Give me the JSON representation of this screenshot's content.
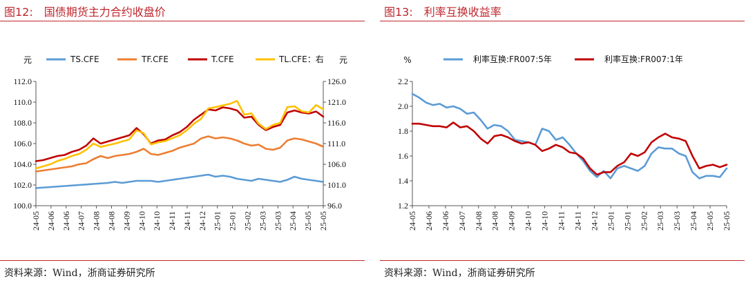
{
  "chart_data": [
    {
      "type": "line",
      "figure_label": "图12:",
      "title": "国债期货主力合约收盘价",
      "left_unit": "元",
      "right_unit": "元",
      "ylim": [
        100.0,
        112.0
      ],
      "y_ticks": [
        "100.0",
        "102.0",
        "104.0",
        "106.0",
        "108.0",
        "110.0",
        "112.0"
      ],
      "y2lim": [
        96.0,
        126.0
      ],
      "y2_ticks": [
        "96.0",
        "101.0",
        "106.0",
        "111.0",
        "116.0",
        "121.0",
        "126.0"
      ],
      "x_ticks": [
        "24-05",
        "24-06",
        "24-06",
        "24-07",
        "24-08",
        "24-08",
        "24-09",
        "24-10",
        "24-10",
        "24-11",
        "24-11",
        "24-12",
        "25-01",
        "25-01",
        "25-02",
        "25-03",
        "25-03",
        "25-04",
        "25-05",
        "25-05"
      ],
      "legend_position": "top",
      "series": [
        {
          "name": "TS.CFE",
          "axis": "left",
          "color": "#5b9bd5",
          "values": [
            [
              0,
              101.7
            ],
            [
              2,
              101.8
            ],
            [
              4,
              101.9
            ],
            [
              6,
              102.0
            ],
            [
              8,
              102.1
            ],
            [
              10,
              102.2
            ],
            [
              11,
              102.3
            ],
            [
              12,
              102.2
            ],
            [
              13,
              102.3
            ],
            [
              14,
              102.4
            ],
            [
              15,
              102.4
            ],
            [
              16,
              102.4
            ],
            [
              17,
              102.3
            ],
            [
              18,
              102.4
            ],
            [
              19,
              102.5
            ],
            [
              20,
              102.6
            ],
            [
              21,
              102.7
            ],
            [
              22,
              102.8
            ],
            [
              23,
              102.9
            ],
            [
              24,
              103.0
            ],
            [
              25,
              102.8
            ],
            [
              26,
              102.9
            ],
            [
              27,
              102.8
            ],
            [
              28,
              102.6
            ],
            [
              29,
              102.5
            ],
            [
              30,
              102.4
            ],
            [
              31,
              102.6
            ],
            [
              32,
              102.5
            ],
            [
              33,
              102.4
            ],
            [
              34,
              102.3
            ],
            [
              35,
              102.5
            ],
            [
              36,
              102.8
            ],
            [
              37,
              102.6
            ],
            [
              38,
              102.5
            ],
            [
              39,
              102.4
            ],
            [
              40,
              102.3
            ]
          ]
        },
        {
          "name": "TF.CFE",
          "axis": "left",
          "color": "#ed7d31",
          "values": [
            [
              0,
              103.3
            ],
            [
              1,
              103.4
            ],
            [
              2,
              103.5
            ],
            [
              3,
              103.6
            ],
            [
              4,
              103.7
            ],
            [
              5,
              103.8
            ],
            [
              6,
              104.0
            ],
            [
              7,
              104.1
            ],
            [
              8,
              104.5
            ],
            [
              9,
              104.8
            ],
            [
              10,
              104.6
            ],
            [
              11,
              104.8
            ],
            [
              12,
              104.9
            ],
            [
              13,
              105.0
            ],
            [
              14,
              105.2
            ],
            [
              15,
              105.5
            ],
            [
              16,
              105.0
            ],
            [
              17,
              104.9
            ],
            [
              18,
              105.1
            ],
            [
              19,
              105.3
            ],
            [
              20,
              105.6
            ],
            [
              21,
              105.8
            ],
            [
              22,
              106.0
            ],
            [
              23,
              106.5
            ],
            [
              24,
              106.7
            ],
            [
              25,
              106.5
            ],
            [
              26,
              106.6
            ],
            [
              27,
              106.5
            ],
            [
              28,
              106.3
            ],
            [
              29,
              106.0
            ],
            [
              30,
              105.8
            ],
            [
              31,
              105.9
            ],
            [
              32,
              105.5
            ],
            [
              33,
              105.4
            ],
            [
              34,
              105.6
            ],
            [
              35,
              106.3
            ],
            [
              36,
              106.5
            ],
            [
              37,
              106.4
            ],
            [
              38,
              106.2
            ],
            [
              39,
              106.0
            ],
            [
              40,
              105.7
            ]
          ]
        },
        {
          "name": "T.CFE",
          "axis": "left",
          "color": "#c00000",
          "values": [
            [
              0,
              104.3
            ],
            [
              1,
              104.4
            ],
            [
              2,
              104.6
            ],
            [
              3,
              104.8
            ],
            [
              4,
              104.9
            ],
            [
              5,
              105.2
            ],
            [
              6,
              105.4
            ],
            [
              7,
              105.8
            ],
            [
              8,
              106.5
            ],
            [
              9,
              106.0
            ],
            [
              10,
              106.2
            ],
            [
              11,
              106.4
            ],
            [
              12,
              106.6
            ],
            [
              13,
              106.8
            ],
            [
              14,
              107.5
            ],
            [
              15,
              106.9
            ],
            [
              16,
              106.0
            ],
            [
              17,
              106.3
            ],
            [
              18,
              106.4
            ],
            [
              19,
              106.8
            ],
            [
              20,
              107.1
            ],
            [
              21,
              107.6
            ],
            [
              22,
              108.3
            ],
            [
              23,
              108.8
            ],
            [
              24,
              109.3
            ],
            [
              25,
              109.2
            ],
            [
              26,
              109.5
            ],
            [
              27,
              109.4
            ],
            [
              28,
              109.2
            ],
            [
              29,
              108.5
            ],
            [
              30,
              108.6
            ],
            [
              31,
              107.8
            ],
            [
              32,
              107.3
            ],
            [
              33,
              107.6
            ],
            [
              34,
              107.8
            ],
            [
              35,
              109.0
            ],
            [
              36,
              109.2
            ],
            [
              37,
              109.0
            ],
            [
              38,
              108.9
            ],
            [
              39,
              109.1
            ],
            [
              40,
              108.6
            ]
          ]
        },
        {
          "name": "TL.CFE：右",
          "axis": "right",
          "color": "#ffc000",
          "values": [
            [
              0,
              105.0
            ],
            [
              1,
              105.5
            ],
            [
              2,
              106.0
            ],
            [
              3,
              106.8
            ],
            [
              4,
              107.3
            ],
            [
              5,
              108.0
            ],
            [
              6,
              108.5
            ],
            [
              7,
              109.5
            ],
            [
              8,
              111.0
            ],
            [
              9,
              110.2
            ],
            [
              10,
              110.6
            ],
            [
              11,
              111.0
            ],
            [
              12,
              111.5
            ],
            [
              13,
              112.0
            ],
            [
              14,
              114.2
            ],
            [
              15,
              113.5
            ],
            [
              16,
              110.8
            ],
            [
              17,
              111.3
            ],
            [
              18,
              111.6
            ],
            [
              19,
              112.3
            ],
            [
              20,
              113.0
            ],
            [
              21,
              114.2
            ],
            [
              22,
              115.8
            ],
            [
              23,
              117.0
            ],
            [
              24,
              119.5
            ],
            [
              25,
              119.8
            ],
            [
              26,
              120.2
            ],
            [
              27,
              120.6
            ],
            [
              28,
              121.3
            ],
            [
              29,
              118.0
            ],
            [
              30,
              118.3
            ],
            [
              31,
              115.8
            ],
            [
              32,
              114.5
            ],
            [
              33,
              115.5
            ],
            [
              34,
              116.0
            ],
            [
              35,
              119.8
            ],
            [
              36,
              120.0
            ],
            [
              37,
              118.8
            ],
            [
              38,
              118.5
            ],
            [
              39,
              120.3
            ],
            [
              40,
              119.3
            ]
          ]
        }
      ]
    },
    {
      "type": "line",
      "figure_label": "图13:",
      "title": "利率互换收益率",
      "left_unit": "%",
      "ylim": [
        1.2,
        2.2
      ],
      "y_ticks": [
        "1.2",
        "1.4",
        "1.6",
        "1.8",
        "2.0",
        "2.2"
      ],
      "x_ticks": [
        "24-05",
        "24-06",
        "24-06",
        "24-07",
        "24-08",
        "24-08",
        "24-09",
        "24-10",
        "24-10",
        "24-11",
        "24-11",
        "24-12",
        "25-01",
        "25-01",
        "25-02",
        "25-03",
        "25-03",
        "25-04",
        "25-05",
        "25-05"
      ],
      "legend_position": "top",
      "series": [
        {
          "name": "利率互换:FR007:5年",
          "axis": "left",
          "color": "#5b9bd5",
          "values": [
            [
              0,
              2.1
            ],
            [
              1,
              2.07
            ],
            [
              2,
              2.03
            ],
            [
              3,
              2.01
            ],
            [
              4,
              2.02
            ],
            [
              5,
              1.99
            ],
            [
              6,
              2.0
            ],
            [
              7,
              1.98
            ],
            [
              8,
              1.94
            ],
            [
              9,
              1.95
            ],
            [
              10,
              1.89
            ],
            [
              11,
              1.82
            ],
            [
              12,
              1.85
            ],
            [
              13,
              1.84
            ],
            [
              14,
              1.8
            ],
            [
              15,
              1.73
            ],
            [
              16,
              1.72
            ],
            [
              17,
              1.71
            ],
            [
              18,
              1.69
            ],
            [
              19,
              1.82
            ],
            [
              20,
              1.8
            ],
            [
              21,
              1.73
            ],
            [
              22,
              1.75
            ],
            [
              23,
              1.69
            ],
            [
              24,
              1.62
            ],
            [
              25,
              1.56
            ],
            [
              26,
              1.48
            ],
            [
              27,
              1.43
            ],
            [
              28,
              1.48
            ],
            [
              29,
              1.42
            ],
            [
              30,
              1.5
            ],
            [
              31,
              1.52
            ],
            [
              32,
              1.5
            ],
            [
              33,
              1.48
            ],
            [
              34,
              1.52
            ],
            [
              35,
              1.62
            ],
            [
              36,
              1.67
            ],
            [
              37,
              1.66
            ],
            [
              38,
              1.66
            ],
            [
              39,
              1.62
            ],
            [
              40,
              1.6
            ],
            [
              41,
              1.47
            ],
            [
              42,
              1.42
            ],
            [
              43,
              1.44
            ],
            [
              44,
              1.44
            ],
            [
              45,
              1.43
            ],
            [
              46,
              1.5
            ]
          ]
        },
        {
          "name": "利率互换:FR007:1年",
          "axis": "left",
          "color": "#c00000",
          "values": [
            [
              0,
              1.86
            ],
            [
              1,
              1.86
            ],
            [
              2,
              1.85
            ],
            [
              3,
              1.84
            ],
            [
              4,
              1.84
            ],
            [
              5,
              1.83
            ],
            [
              6,
              1.87
            ],
            [
              7,
              1.83
            ],
            [
              8,
              1.84
            ],
            [
              9,
              1.8
            ],
            [
              10,
              1.74
            ],
            [
              11,
              1.7
            ],
            [
              12,
              1.76
            ],
            [
              13,
              1.77
            ],
            [
              14,
              1.75
            ],
            [
              15,
              1.72
            ],
            [
              16,
              1.7
            ],
            [
              17,
              1.71
            ],
            [
              18,
              1.69
            ],
            [
              19,
              1.64
            ],
            [
              20,
              1.66
            ],
            [
              21,
              1.69
            ],
            [
              22,
              1.67
            ],
            [
              23,
              1.63
            ],
            [
              24,
              1.62
            ],
            [
              25,
              1.58
            ],
            [
              26,
              1.5
            ],
            [
              27,
              1.45
            ],
            [
              28,
              1.47
            ],
            [
              29,
              1.47
            ],
            [
              30,
              1.52
            ],
            [
              31,
              1.55
            ],
            [
              32,
              1.62
            ],
            [
              33,
              1.6
            ],
            [
              34,
              1.63
            ],
            [
              35,
              1.71
            ],
            [
              36,
              1.75
            ],
            [
              37,
              1.78
            ],
            [
              38,
              1.75
            ],
            [
              39,
              1.74
            ],
            [
              40,
              1.72
            ],
            [
              41,
              1.6
            ],
            [
              42,
              1.5
            ],
            [
              43,
              1.52
            ],
            [
              44,
              1.53
            ],
            [
              45,
              1.51
            ],
            [
              46,
              1.53
            ]
          ]
        }
      ]
    }
  ],
  "footer": {
    "left_source": "资料来源：Wind，浙商证券研究所",
    "right_source": "资料来源：Wind，浙商证券研究所"
  }
}
